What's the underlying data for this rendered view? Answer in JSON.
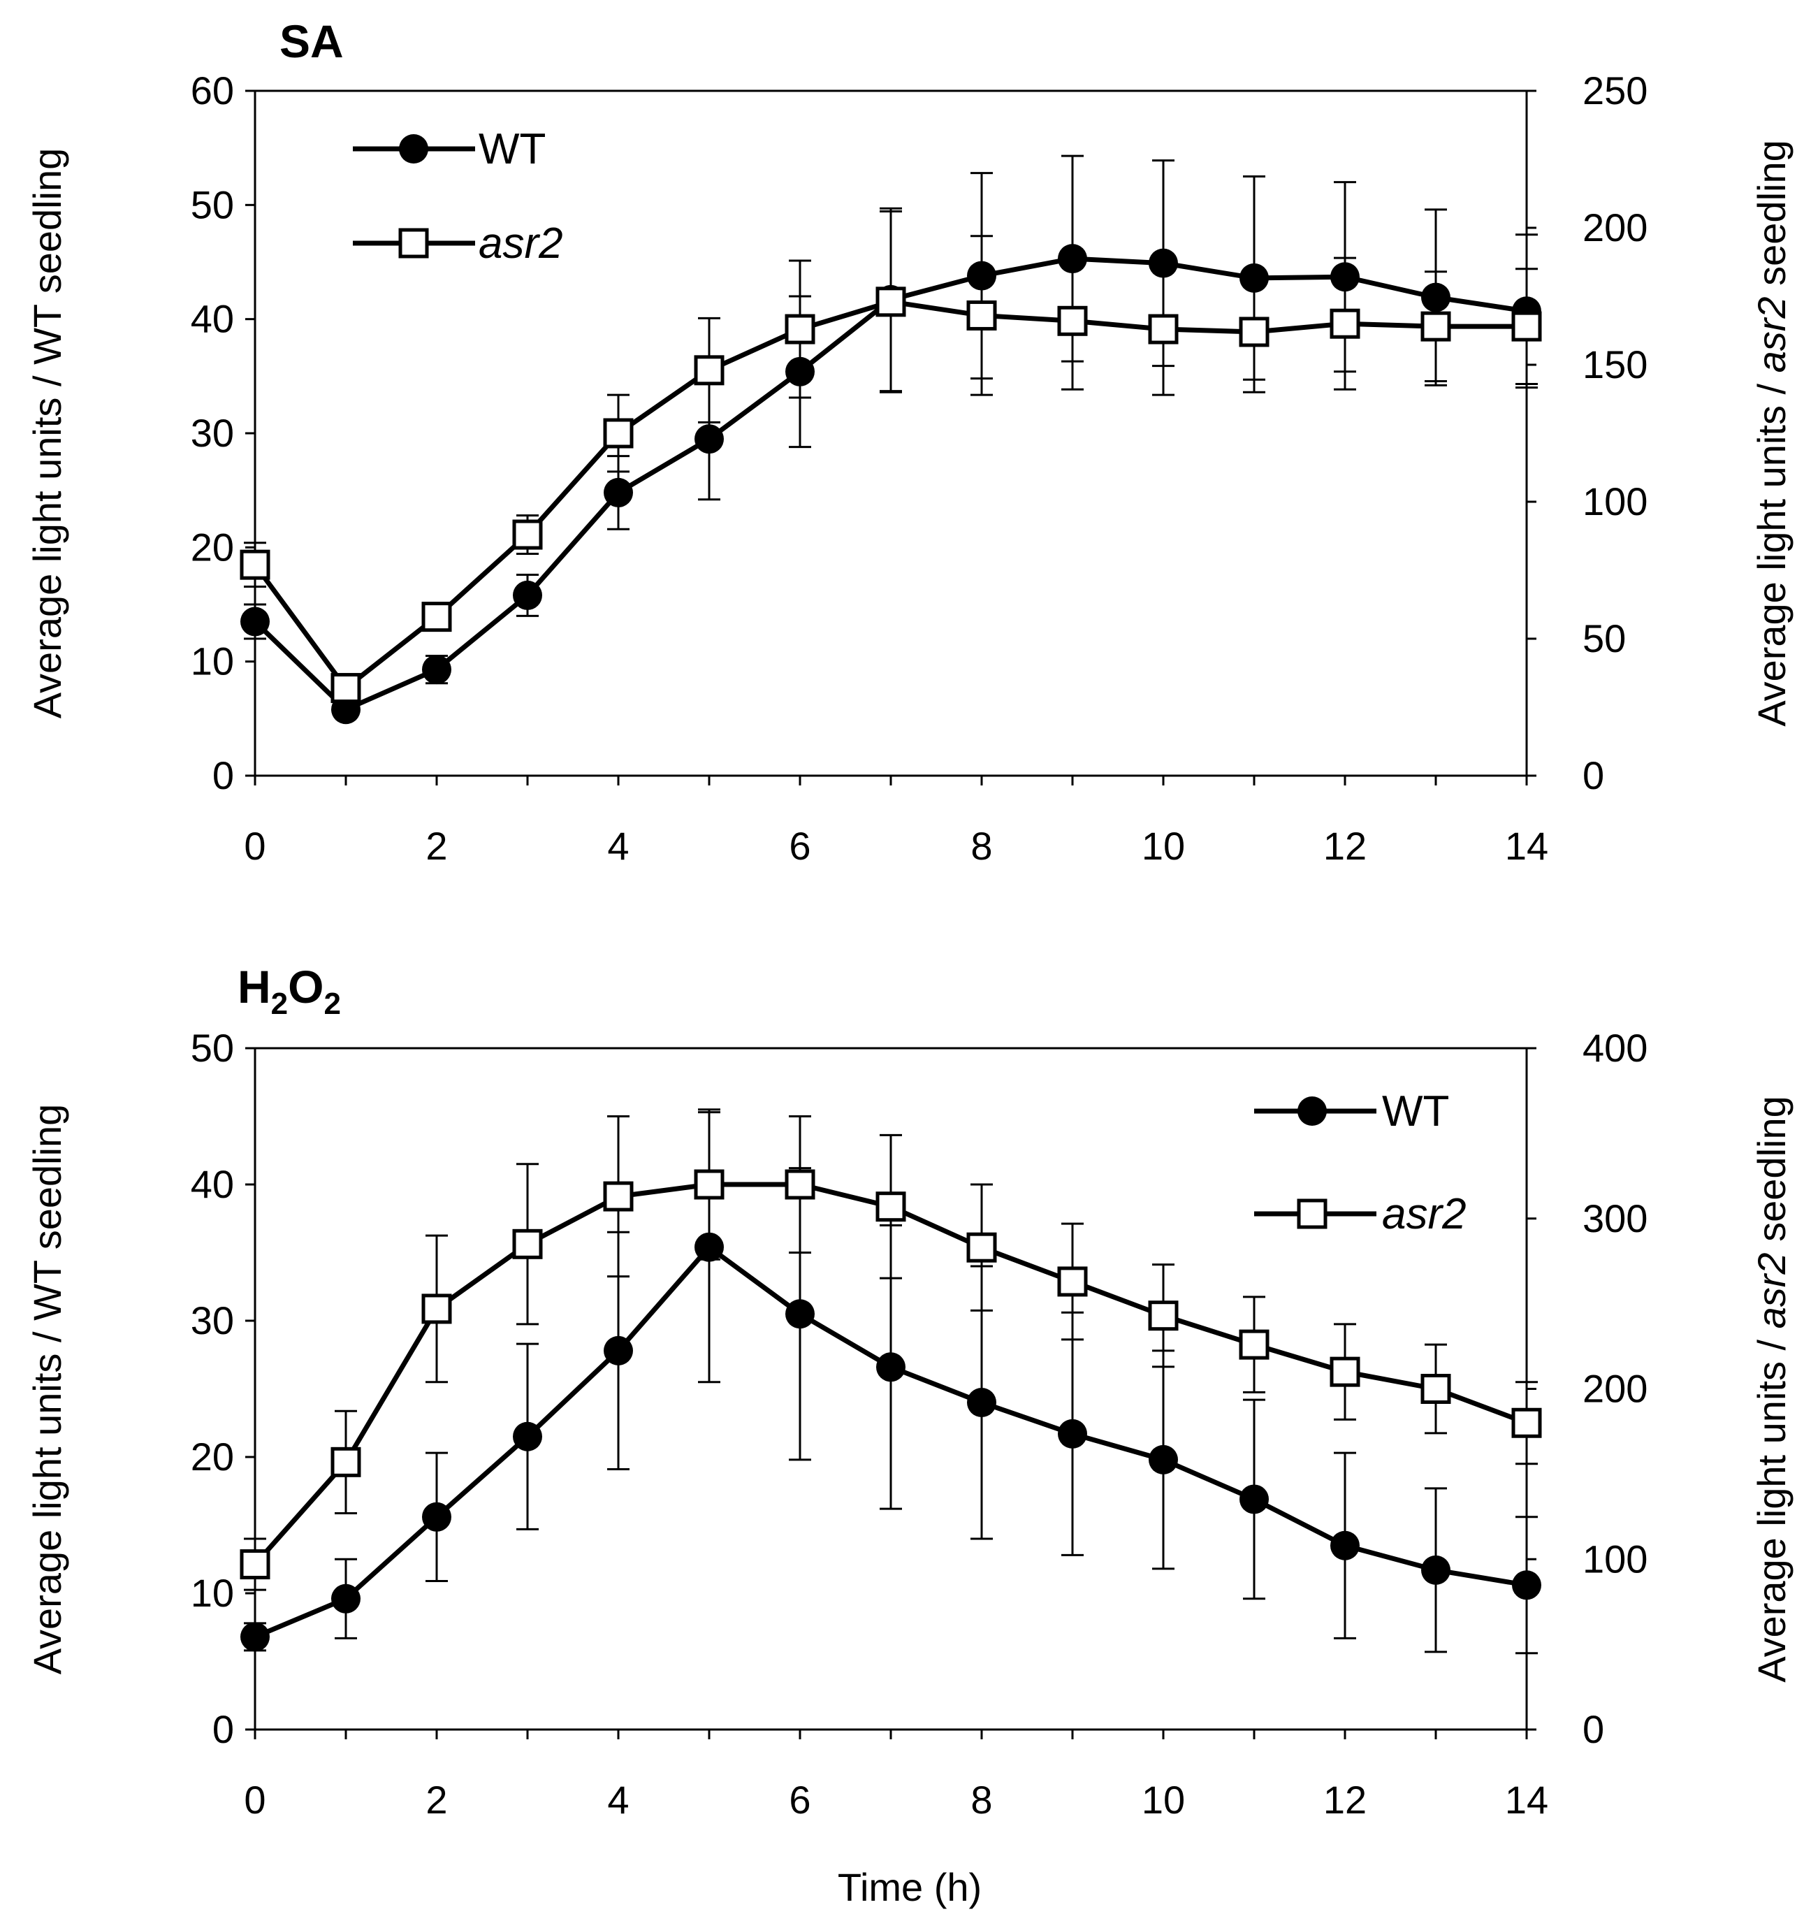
{
  "chart_data": [
    {
      "type": "line",
      "title": "SA",
      "xlabel": "",
      "ylabel_left": "Average light units / WT seedling",
      "ylabel_right_prefix": "Average light units / ",
      "ylabel_right_italic": "asr2",
      "ylabel_right_suffix": " seedling",
      "xlim": [
        0,
        14
      ],
      "xticks": [
        0,
        2,
        4,
        6,
        8,
        10,
        12,
        14
      ],
      "ylim_left": [
        0,
        60
      ],
      "yticks_left": [
        0,
        10,
        20,
        30,
        40,
        50,
        60
      ],
      "ylim_right": [
        0,
        250
      ],
      "yticks_right": [
        0,
        50,
        100,
        150,
        200,
        250
      ],
      "legend_position": "top-left",
      "grid": false,
      "x": [
        0,
        1,
        2,
        3,
        4,
        5,
        6,
        7,
        8,
        9,
        10,
        11,
        12,
        13,
        14
      ],
      "series": [
        {
          "name": "WT",
          "axis": "left",
          "marker": "filled-circle",
          "values": [
            13.5,
            5.8,
            9.3,
            15.8,
            24.8,
            29.5,
            35.4,
            41.7,
            43.8,
            45.3,
            44.9,
            43.6,
            43.7,
            41.9,
            40.7
          ],
          "errors": [
            1.5,
            0.7,
            1.2,
            1.8,
            3.2,
            5.3,
            6.6,
            8.0,
            9.0,
            9.0,
            9.0,
            8.9,
            8.3,
            7.7,
            6.7
          ]
        },
        {
          "name": "asr2",
          "axis": "right",
          "marker": "open-square",
          "values": [
            77,
            32,
            58,
            88,
            125,
            148,
            163,
            173,
            168,
            166,
            163,
            162,
            165,
            164,
            164
          ],
          "errors": [
            8,
            4,
            5,
            7,
            14,
            19,
            25,
            33,
            29,
            25,
            24,
            22,
            24,
            20,
            21
          ]
        }
      ]
    },
    {
      "type": "line",
      "title_main": "H",
      "title_sub1": "2",
      "title_mid": "O",
      "title_sub2": "2",
      "xlabel": "Time (h)",
      "ylabel_left": "Average light units / WT seedling",
      "ylabel_right_prefix": "Average light units / ",
      "ylabel_right_italic": "asr2",
      "ylabel_right_suffix": " seedling",
      "xlim": [
        0,
        14
      ],
      "xticks": [
        0,
        2,
        4,
        6,
        8,
        10,
        12,
        14
      ],
      "ylim_left": [
        0,
        50
      ],
      "yticks_left": [
        0,
        10,
        20,
        30,
        40,
        50
      ],
      "ylim_right": [
        0,
        400
      ],
      "yticks_right": [
        0,
        100,
        200,
        300,
        400
      ],
      "legend_position": "top-right",
      "grid": false,
      "x": [
        0,
        1,
        2,
        3,
        4,
        5,
        6,
        7,
        8,
        9,
        10,
        11,
        12,
        13,
        14
      ],
      "series": [
        {
          "name": "WT",
          "axis": "left",
          "marker": "filled-circle",
          "values": [
            6.8,
            9.6,
            15.6,
            21.5,
            27.8,
            35.4,
            30.5,
            26.6,
            24.0,
            21.7,
            19.8,
            16.9,
            13.5,
            11.7,
            10.6
          ],
          "errors": [
            1.0,
            2.9,
            4.7,
            6.8,
            8.7,
            9.9,
            10.7,
            10.4,
            10.0,
            8.9,
            8.0,
            7.3,
            6.8,
            6.0,
            5.0
          ]
        },
        {
          "name": "asr2",
          "axis": "right",
          "marker": "open-square",
          "values": [
            97,
            157,
            247,
            285,
            313,
            320,
            320,
            307,
            283,
            263,
            243,
            226,
            210,
            200,
            180
          ],
          "errors": [
            15,
            30,
            43,
            47,
            47,
            44,
            40,
            42,
            37,
            34,
            30,
            28,
            28,
            26,
            24
          ]
        }
      ]
    }
  ]
}
